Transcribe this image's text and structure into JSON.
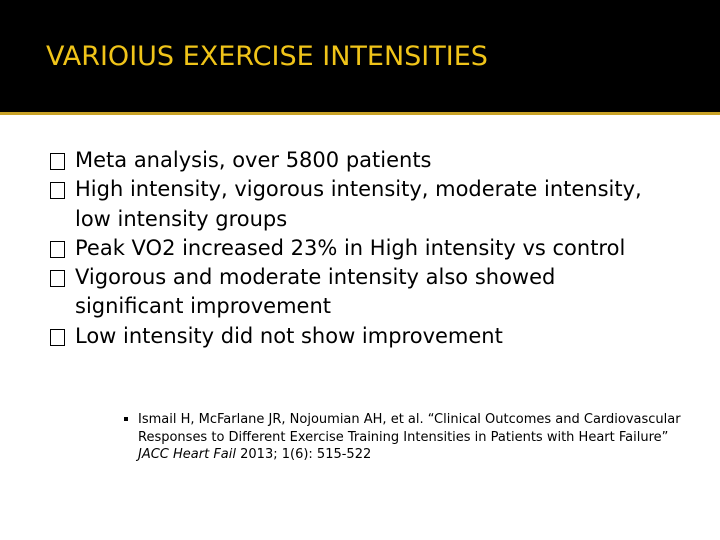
{
  "slide": {
    "title": "VARIOIUS EXERCISE INTENSITIES",
    "bullets": [
      "Meta analysis, over 5800 patients",
      "High intensity, vigorous intensity, moderate intensity, low intensity groups",
      "Peak VO2 increased 23% in High intensity vs control",
      "Vigorous and moderate intensity also showed significant improvement",
      "Low intensity did not show improvement"
    ],
    "citation": {
      "text": "Ismail H, McFarlane JR, Nojoumian AH, et al. “Clinical Outcomes and Cardiovascular Responses to Different Exercise Training Intensities in Patients with Heart Failure” ",
      "journal": "JACC Heart Fail",
      "details": " 2013; 1(6): 515-522"
    }
  },
  "colors": {
    "title_bar": "#000000",
    "title_text": "#f0c419",
    "accent_line": "#c9a227",
    "body_text": "#000000"
  }
}
